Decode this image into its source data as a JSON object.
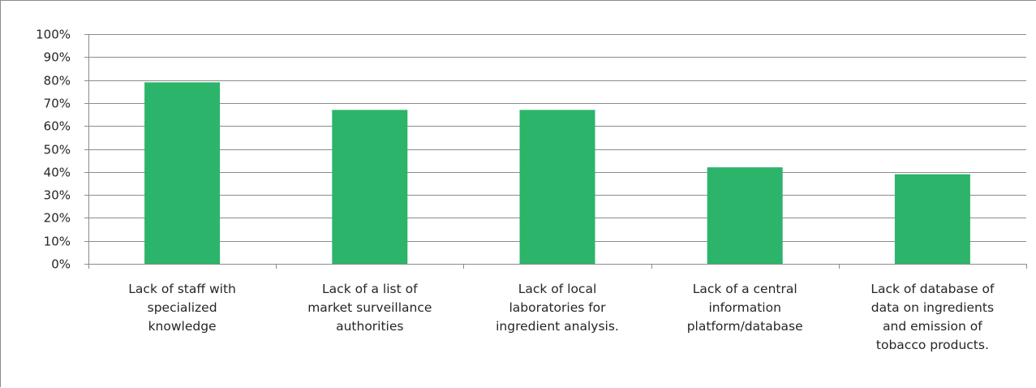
{
  "chart_data": {
    "type": "bar",
    "title": "",
    "xlabel": "",
    "ylabel": "",
    "categories": [
      "Lack of staff with specialized knowledge",
      "Lack of a list of market surveillance authorities",
      "Lack of local laboratories for ingredient analysis.",
      "Lack of a  central information platform/database",
      "Lack of database of data on ingredients and emission of tobacco products."
    ],
    "category_lines": [
      [
        "Lack of staff with",
        "specialized",
        "knowledge"
      ],
      [
        "Lack of a list of",
        "market surveillance",
        "authorities"
      ],
      [
        "Lack of local",
        "laboratories for",
        "ingredient analysis."
      ],
      [
        "Lack of a  central",
        "information",
        "platform/database"
      ],
      [
        "Lack of database of",
        "data on ingredients",
        "and emission of",
        "tobacco products."
      ]
    ],
    "values": [
      79,
      67,
      67,
      42,
      39
    ],
    "ylim": [
      0,
      100
    ],
    "y_ticks": [
      "0%",
      "10%",
      "20%",
      "30%",
      "40%",
      "50%",
      "60%",
      "70%",
      "80%",
      "90%",
      "100%"
    ],
    "grid": true,
    "legend": "none",
    "bar_color": "#2db46b",
    "grid_color": "#8c8c8c",
    "axis_color": "#8c8c8c"
  }
}
